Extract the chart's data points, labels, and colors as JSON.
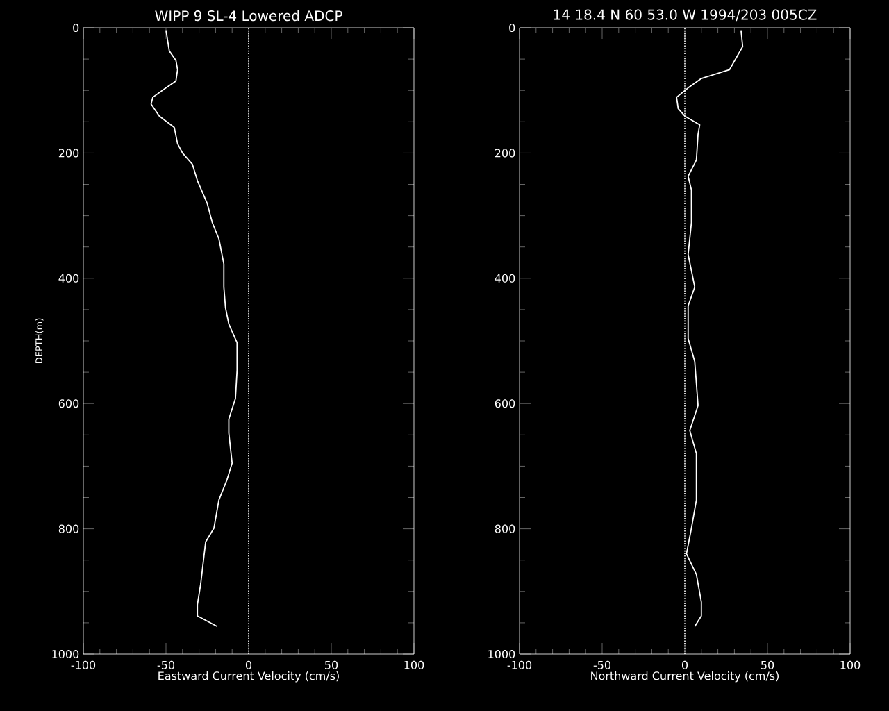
{
  "chart_data": [
    {
      "type": "line",
      "title": "WIPP 9  SL-4    Lowered ADCP",
      "xlabel": "Eastward Current Velocity (cm/s)",
      "ylabel": "DEPTH(m)",
      "xlim": [
        -100,
        100
      ],
      "ylim": [
        1000,
        0
      ],
      "xticks": [
        -100,
        -50,
        0,
        50,
        100
      ],
      "yticks": [
        0,
        200,
        400,
        600,
        800,
        1000
      ],
      "series": [
        {
          "color": "#ffffff",
          "x": [
            -50,
            -48,
            -44,
            -43,
            -44,
            -50,
            -58,
            -59,
            -54,
            -45,
            -43,
            -40,
            -34,
            -31,
            -25,
            -22,
            -18,
            -15,
            -15,
            -14,
            -12,
            -7,
            -7,
            -8,
            -12,
            -12,
            -10,
            -13,
            -18,
            -21,
            -26,
            -27,
            -29,
            -31,
            -31,
            -19
          ],
          "values": [
            4,
            37,
            52,
            67,
            85,
            96,
            111,
            122,
            141,
            159,
            185,
            200,
            218,
            244,
            281,
            311,
            337,
            377,
            414,
            447,
            473,
            503,
            547,
            592,
            625,
            647,
            695,
            721,
            754,
            799,
            821,
            843,
            888,
            921,
            939,
            956
          ]
        }
      ],
      "ref_lines": [
        {
          "axis": "x",
          "value": 0,
          "line_style": "dotted"
        }
      ]
    },
    {
      "type": "line",
      "title": "14 18.4 N  60 53.0 W  1994/203 005CZ",
      "xlabel": "Northward Current Velocity (cm/s)",
      "xlim": [
        -100,
        100
      ],
      "ylim": [
        1000,
        0
      ],
      "xticks": [
        -100,
        -50,
        0,
        50,
        100
      ],
      "yticks": [
        0,
        200,
        400,
        600,
        800,
        1000
      ],
      "series": [
        {
          "color": "#ffffff",
          "x": [
            34,
            35,
            27,
            10,
            2,
            -5,
            -4,
            0,
            9,
            8,
            7,
            2,
            4,
            4,
            2,
            6,
            2,
            2,
            6,
            8,
            3,
            7,
            7,
            4,
            1,
            7,
            10,
            10,
            6
          ],
          "values": [
            4,
            30,
            67,
            81,
            96,
            111,
            129,
            141,
            155,
            170,
            211,
            237,
            259,
            311,
            362,
            414,
            444,
            496,
            533,
            603,
            643,
            680,
            754,
            799,
            840,
            873,
            917,
            939,
            956
          ]
        }
      ],
      "ref_lines": [
        {
          "axis": "x",
          "value": 0,
          "line_style": "dotted"
        }
      ]
    }
  ]
}
